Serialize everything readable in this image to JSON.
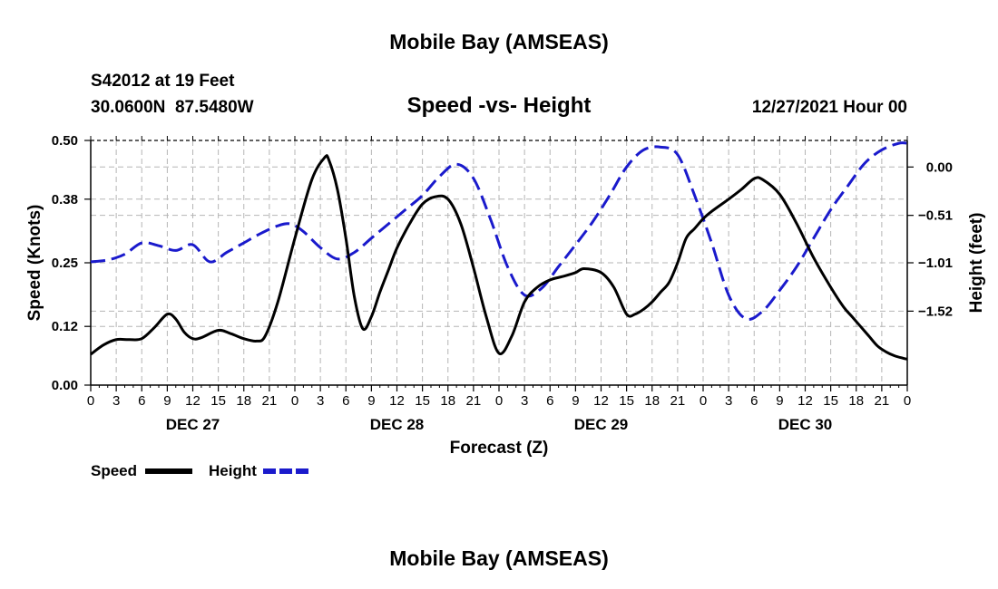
{
  "page": {
    "title_top": "Mobile Bay (AMSEAS)",
    "title_bottom": "Mobile Bay (AMSEAS)",
    "station_line1": "S42012 at 19 Feet",
    "station_line2": "30.0600N  87.5480W",
    "datetime": "12/27/2021 Hour 00"
  },
  "chart_data": {
    "type": "line",
    "title": "Speed -vs- Height",
    "xlabel": "Forecast (Z)",
    "ylabel_left": "Speed (Knots)",
    "ylabel_right": "Height (feet)",
    "x_range_hours": [
      0,
      96
    ],
    "x_tick_step_hours": 3,
    "x_tick_labels": [
      "0",
      "3",
      "6",
      "9",
      "12",
      "15",
      "18",
      "21",
      "0",
      "3",
      "6",
      "9",
      "12",
      "15",
      "18",
      "21",
      "0",
      "3",
      "6",
      "9",
      "12",
      "15",
      "18",
      "21",
      "0",
      "3",
      "6",
      "9",
      "12",
      "15",
      "18",
      "21",
      "0"
    ],
    "day_labels": [
      {
        "label": "DEC 27",
        "hour": 12
      },
      {
        "label": "DEC 28",
        "hour": 36
      },
      {
        "label": "DEC 29",
        "hour": 60
      },
      {
        "label": "DEC 30",
        "hour": 84
      }
    ],
    "ylim_left": [
      0,
      0.5
    ],
    "y_ticks_left": [
      0.0,
      0.12,
      0.25,
      0.38,
      0.5
    ],
    "y_tick_labels_left": [
      "0.00",
      "0.12",
      "0.25",
      "0.38",
      "0.50"
    ],
    "ylim_right": [
      -2.3,
      0.28
    ],
    "y_ticks_right": [
      -1.52,
      -1.01,
      -0.51,
      0.0
    ],
    "y_tick_labels_right": [
      "-1.52",
      "-1.01",
      "-0.51",
      "0.00"
    ],
    "grid": true,
    "legend_position": "below-left",
    "series": [
      {
        "name": "Speed",
        "axis": "left",
        "color": "#000000",
        "style": "solid",
        "x": [
          0,
          1.5,
          3,
          4.5,
          6,
          7.5,
          9,
          10,
          11,
          12,
          13,
          15,
          16.5,
          18,
          19.5,
          20.5,
          22,
          24,
          26,
          27.5,
          28,
          29,
          30,
          31,
          32,
          33,
          34,
          35,
          36,
          37.5,
          39,
          40.5,
          42,
          43.5,
          45,
          46.5,
          48,
          49.5,
          51,
          52.5,
          54,
          55.5,
          57,
          58,
          60,
          61.5,
          63,
          64,
          65,
          66,
          67,
          68,
          69,
          70,
          71,
          72,
          73,
          75,
          76.5,
          78,
          79,
          81,
          83,
          85,
          87,
          88.5,
          89.5,
          90.5,
          91.5,
          92.5,
          93.5,
          94.5,
          95.5,
          96
        ],
        "y": [
          0.063,
          0.082,
          0.093,
          0.093,
          0.095,
          0.118,
          0.145,
          0.135,
          0.108,
          0.095,
          0.097,
          0.112,
          0.105,
          0.095,
          0.09,
          0.1,
          0.17,
          0.3,
          0.42,
          0.465,
          0.46,
          0.4,
          0.3,
          0.18,
          0.115,
          0.14,
          0.19,
          0.235,
          0.28,
          0.33,
          0.37,
          0.385,
          0.38,
          0.33,
          0.24,
          0.14,
          0.065,
          0.1,
          0.17,
          0.2,
          0.215,
          0.222,
          0.23,
          0.238,
          0.23,
          0.2,
          0.145,
          0.145,
          0.155,
          0.17,
          0.19,
          0.21,
          0.25,
          0.3,
          0.32,
          0.34,
          0.355,
          0.38,
          0.4,
          0.422,
          0.42,
          0.39,
          0.33,
          0.26,
          0.2,
          0.16,
          0.14,
          0.12,
          0.1,
          0.08,
          0.068,
          0.06,
          0.055,
          0.053
        ],
        "note": "speed values above in knots"
      },
      {
        "name": "Height",
        "axis": "right",
        "color": "#1a1acc",
        "style": "dashed",
        "x": [
          0,
          2,
          4,
          6,
          8,
          10,
          12,
          14,
          16,
          18,
          20,
          22,
          23.5,
          25,
          27,
          29,
          31,
          33,
          35,
          37,
          39,
          41,
          43,
          45,
          47,
          49,
          51,
          53,
          55,
          57,
          59,
          61,
          63,
          65,
          67,
          69,
          71,
          73,
          75,
          77,
          79,
          81,
          83,
          85,
          87,
          89,
          91,
          93,
          95,
          96
        ],
        "y": [
          -1.0,
          -0.98,
          -0.92,
          -0.8,
          -0.83,
          -0.88,
          -0.82,
          -1.0,
          -0.9,
          -0.8,
          -0.7,
          -0.62,
          -0.6,
          -0.68,
          -0.85,
          -0.97,
          -0.9,
          -0.75,
          -0.6,
          -0.45,
          -0.3,
          -0.1,
          0.03,
          -0.12,
          -0.55,
          -1.05,
          -1.35,
          -1.28,
          -1.05,
          -0.82,
          -0.58,
          -0.3,
          0.0,
          0.18,
          0.21,
          0.13,
          -0.3,
          -0.8,
          -1.35,
          -1.6,
          -1.52,
          -1.3,
          -1.05,
          -0.75,
          -0.45,
          -0.2,
          0.04,
          0.18,
          0.25,
          0.25
        ],
        "note": "height values above in feet"
      }
    ]
  },
  "legend": {
    "speed_label": "Speed",
    "height_label": "Height"
  }
}
